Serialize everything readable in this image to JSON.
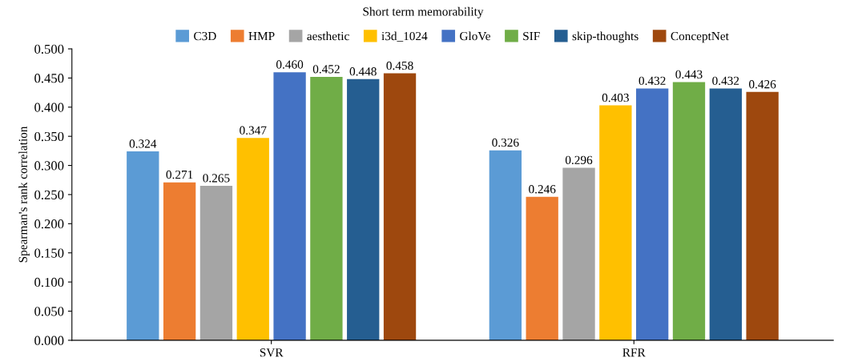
{
  "chart_data": {
    "type": "bar",
    "title": "Short term memorability",
    "ylabel": "Spearman's rank correlation",
    "categories": [
      "SVR",
      "RFR"
    ],
    "series": [
      {
        "name": "C3D",
        "color": "#5b9bd5",
        "values": [
          0.324,
          0.326
        ],
        "value_labels": [
          "0.324",
          "0.326"
        ]
      },
      {
        "name": "HMP",
        "color": "#ed7d31",
        "values": [
          0.271,
          0.246
        ],
        "value_labels": [
          "0.271",
          "0.246"
        ]
      },
      {
        "name": "aesthetic",
        "color": "#a5a5a5",
        "values": [
          0.265,
          0.296
        ],
        "value_labels": [
          "0.265",
          "0.296"
        ]
      },
      {
        "name": "i3d_1024",
        "color": "#ffc000",
        "values": [
          0.347,
          0.403
        ],
        "value_labels": [
          "0.347",
          "0.403"
        ]
      },
      {
        "name": "GloVe",
        "color": "#4472c4",
        "values": [
          0.46,
          0.432
        ],
        "value_labels": [
          "0.460",
          "0.432"
        ]
      },
      {
        "name": "SIF",
        "color": "#70ad47",
        "values": [
          0.452,
          0.443
        ],
        "value_labels": [
          "0.452",
          "0.443"
        ]
      },
      {
        "name": "skip-thoughts",
        "color": "#255e91",
        "values": [
          0.448,
          0.432
        ],
        "value_labels": [
          "0.448",
          "0.432"
        ]
      },
      {
        "name": "ConceptNet",
        "color": "#9e480e",
        "values": [
          0.458,
          0.426
        ],
        "value_labels": [
          "0.458",
          "0.426"
        ]
      }
    ],
    "ylim": [
      0,
      0.5
    ],
    "yticks": [
      {
        "value": 0,
        "label": "0.000"
      },
      {
        "value": 0.05,
        "label": "0.050"
      },
      {
        "value": 0.1,
        "label": "0.100"
      },
      {
        "value": 0.15,
        "label": "0.150"
      },
      {
        "value": 0.2,
        "label": "0.200"
      },
      {
        "value": 0.25,
        "label": "0.250"
      },
      {
        "value": 0.3,
        "label": "0.300"
      },
      {
        "value": 0.35,
        "label": "0.350"
      },
      {
        "value": 0.4,
        "label": "0.400"
      },
      {
        "value": 0.45,
        "label": "0.450"
      },
      {
        "value": 0.5,
        "label": "0.500"
      }
    ],
    "grid": false,
    "legend": "top"
  }
}
